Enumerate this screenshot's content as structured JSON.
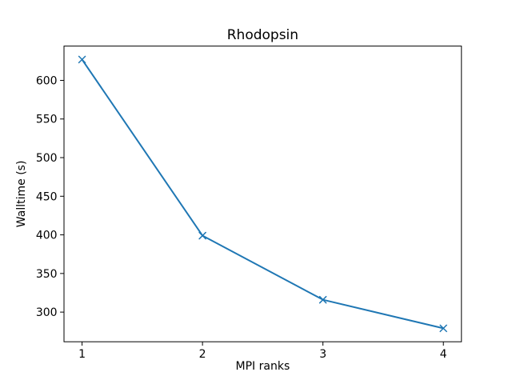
{
  "chart_data": {
    "type": "line",
    "title": "Rhodopsin",
    "xlabel": "MPI ranks",
    "ylabel": "Walltime (s)",
    "x": [
      1,
      2,
      3,
      4
    ],
    "series": [
      {
        "name": "walltime",
        "values": [
          627,
          399,
          316,
          279
        ]
      }
    ],
    "xticks": [
      1,
      2,
      3,
      4
    ],
    "yticks": [
      300,
      350,
      400,
      450,
      500,
      550,
      600
    ],
    "xlim": [
      0.85,
      4.15
    ],
    "ylim": [
      261.6,
      644.4
    ],
    "line_color": "#1f77b4",
    "marker": "x",
    "grid": false,
    "legend": null
  }
}
